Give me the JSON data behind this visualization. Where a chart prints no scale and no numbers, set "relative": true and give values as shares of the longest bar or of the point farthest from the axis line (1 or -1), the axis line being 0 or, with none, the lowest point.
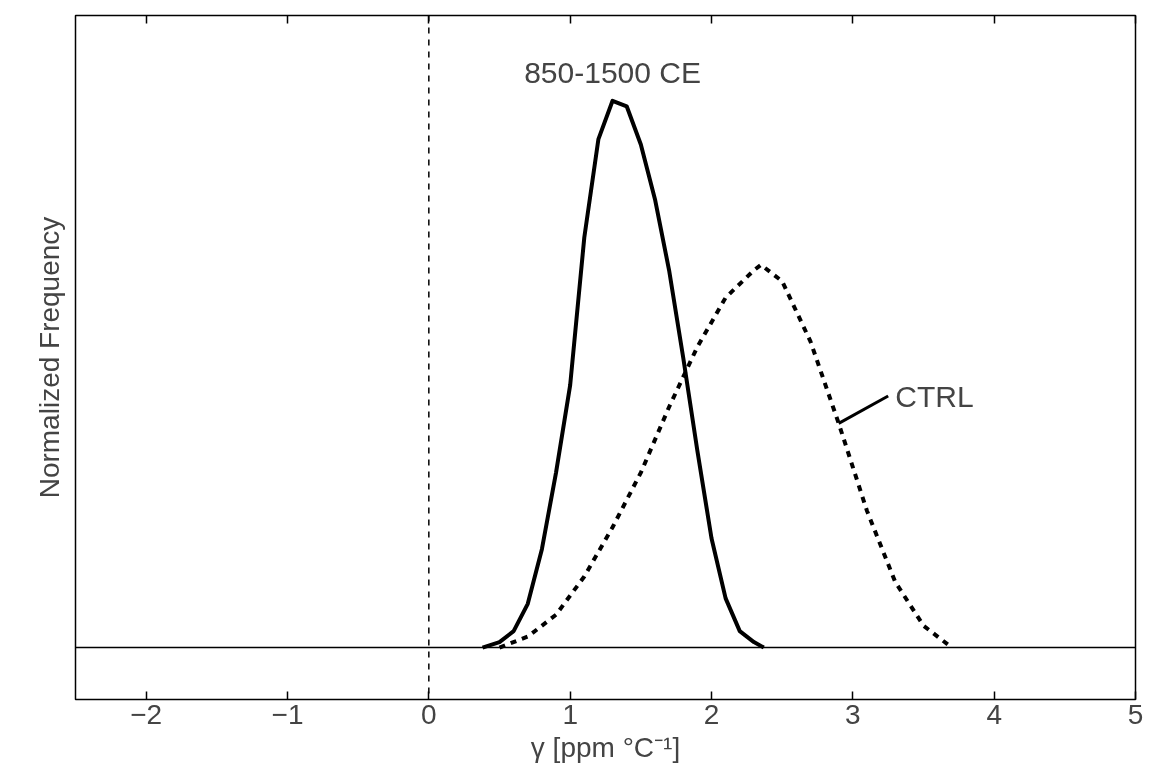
{
  "chart_data": {
    "type": "line",
    "relative": true,
    "xlabel": "γ [ppm °C⁻¹]",
    "ylabel": "Normalized Frequency",
    "xlim": [
      -2.5,
      5
    ],
    "xticks": [
      {
        "value": -2,
        "label": "−2"
      },
      {
        "value": -1,
        "label": "−1"
      },
      0,
      1,
      2,
      3,
      4,
      5
    ],
    "grid": false,
    "marker": "none",
    "series": [
      {
        "color": "#000000",
        "line_style": "solid",
        "x": [
          0.38,
          0.5,
          0.6,
          0.7,
          0.8,
          0.9,
          1.0,
          1.1,
          1.2,
          1.3,
          1.4,
          1.5,
          1.6,
          1.7,
          1.8,
          1.9,
          2.0,
          2.1,
          2.2,
          2.3,
          2.37
        ],
        "values": [
          0,
          0.01,
          0.03,
          0.08,
          0.18,
          0.32,
          0.48,
          0.75,
          0.93,
          1.0,
          0.99,
          0.92,
          0.82,
          0.69,
          0.53,
          0.36,
          0.2,
          0.09,
          0.03,
          0.01,
          0
        ]
      },
      {
        "color": "#000000",
        "line_style": "dashed",
        "x": [
          0.5,
          0.7,
          0.9,
          1.1,
          1.3,
          1.5,
          1.7,
          1.9,
          2.1,
          2.3,
          2.35,
          2.5,
          2.7,
          2.9,
          3.1,
          3.3,
          3.5,
          3.7
        ],
        "values": [
          0,
          0.02,
          0.06,
          0.13,
          0.22,
          0.32,
          0.44,
          0.55,
          0.64,
          0.69,
          0.7,
          0.67,
          0.56,
          0.41,
          0.25,
          0.12,
          0.04,
          0
        ]
      }
    ],
    "ref_lines": [
      {
        "axis": "x",
        "value": 0,
        "label": null,
        "color": "#000000",
        "line_style": "dashed"
      }
    ],
    "annotations": [
      {
        "text": "850-1500 CE",
        "x": 1.3,
        "y": 1.0
      },
      {
        "text": "CTRL",
        "x": 2.9,
        "y": 0.41
      }
    ]
  }
}
